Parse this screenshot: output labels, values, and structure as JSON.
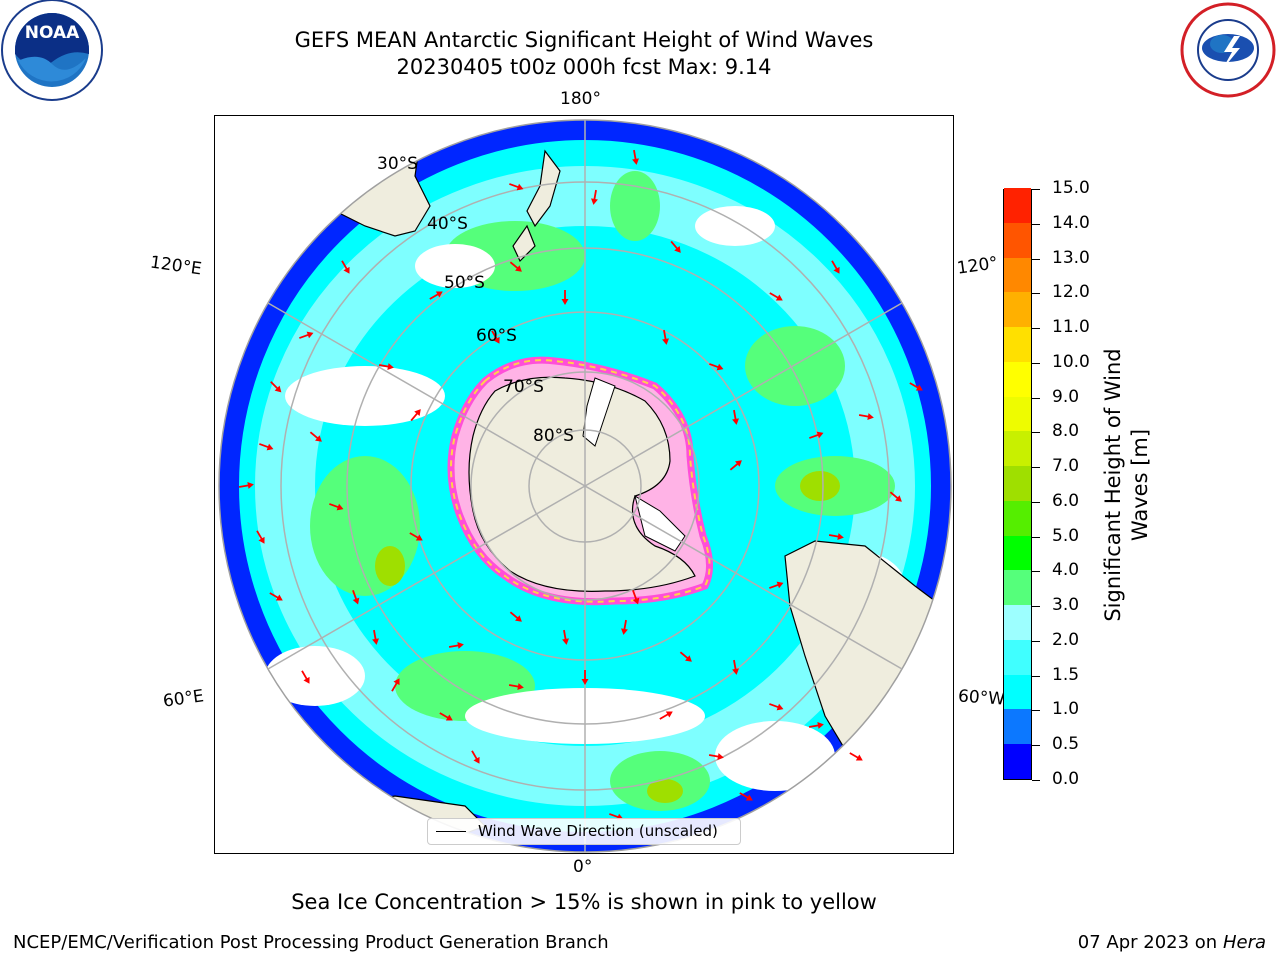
{
  "header": {
    "title_line1": "GEFS MEAN Antarctic Significant Height of Wind Waves",
    "title_line2": "20230405 t00z 000h fcst   Max: 9.14",
    "noara_logo_text": "NOAA",
    "nws_logo_text": "NATIONAL WEATHER SERVICE"
  },
  "map": {
    "projection": "south-polar-stereographic",
    "land_color": "#efedde",
    "gridline_color": "#b0b0b0",
    "longitude_labels": {
      "top": "180°",
      "bottom": "0°",
      "left_upper": "120°E",
      "left_lower": "60°E",
      "right_upper": "120°",
      "right_lower": "60°W"
    },
    "latitude_labels": [
      "30°S",
      "40°S",
      "50°S",
      "60°S",
      "70°S",
      "80°S"
    ],
    "legend_label": "Wind Wave Direction (unscaled)",
    "arrow_color": "#ff0000",
    "sea_ice_colors": [
      "#ff4fd8",
      "#ffd24a"
    ]
  },
  "colorbar": {
    "title": "Significant Height of Wind Waves [m]",
    "ticks": [
      "0.0",
      "0.5",
      "1.0",
      "1.5",
      "2.0",
      "3.0",
      "4.0",
      "5.0",
      "6.0",
      "7.0",
      "8.0",
      "9.0",
      "10.0",
      "11.0",
      "12.0",
      "13.0",
      "14.0",
      "15.0"
    ],
    "colors": [
      "#0000ff",
      "#0c78ff",
      "#00ffff",
      "#40ffff",
      "#9dffff",
      "#55ff7b",
      "#00ff00",
      "#55ee00",
      "#9fdf00",
      "#c8f000",
      "#eefc00",
      "#ffff00",
      "#ffe000",
      "#ffb000",
      "#ff8800",
      "#ff5500",
      "#ff2200"
    ]
  },
  "caption": "Sea Ice Concentration > 15% is shown in pink to yellow",
  "footer": {
    "left": "NCEP/EMC/Verification Post Processing Product Generation Branch",
    "right_prefix": "07 Apr 2023 on ",
    "right_machine": "Hera"
  }
}
